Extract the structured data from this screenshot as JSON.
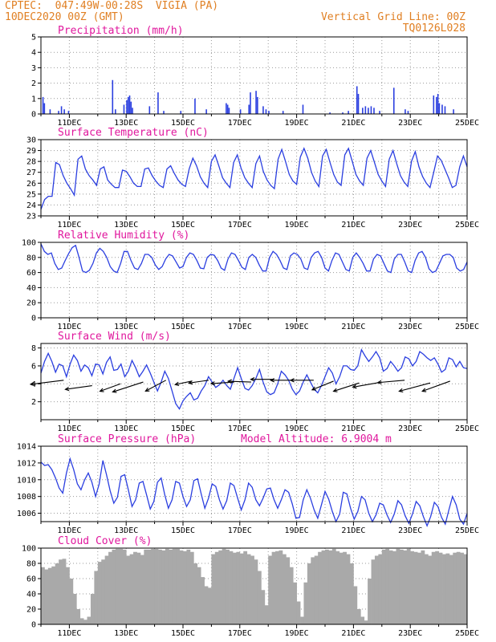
{
  "header": {
    "line1": "CPTEC:  047:49W-00:28S  VIGIA (PA)",
    "line2": "10DEC2020 00Z (GMT)",
    "right1": "Vertical Grid Line: 00Z",
    "right2": "TQ0126L028"
  },
  "colors": {
    "header": "#e07f22",
    "title": "#e0179d",
    "line": "#2b3fe0",
    "cloud": "#a9a9a9",
    "wind": "#000000"
  },
  "x_axis": {
    "start": "10DEC2020 00Z",
    "end": "25DEC2020 00Z",
    "day_ticks": [
      "11DEC",
      "12DEC",
      "13DEC",
      "14DEC",
      "15DEC",
      "16DEC",
      "17DEC",
      "18DEC",
      "19DEC",
      "20DEC",
      "21DEC",
      "22DEC",
      "23DEC",
      "24DEC",
      "25DEC"
    ],
    "labels": [
      "11DEC",
      "13DEC",
      "15DEC",
      "17DEC",
      "19DEC",
      "21DEC",
      "23DEC",
      "25DEC"
    ],
    "grid": "vertical dotted at 00Z"
  },
  "chart_data": [
    {
      "type": "bar",
      "title": "Precipitation (mm/h)",
      "ylim": [
        0,
        5
      ],
      "yticks": [
        "0",
        "1",
        "2",
        "3",
        "4",
        "5"
      ],
      "bars": [
        [
          0.05,
          1.1
        ],
        [
          0.1,
          0.7
        ],
        [
          0.3,
          0.3
        ],
        [
          0.6,
          0.2
        ],
        [
          0.7,
          0.5
        ],
        [
          0.8,
          0.3
        ],
        [
          0.95,
          0.2
        ],
        [
          2.5,
          2.2
        ],
        [
          2.6,
          0.3
        ],
        [
          2.9,
          0.6
        ],
        [
          3.0,
          0.9
        ],
        [
          3.05,
          1.1
        ],
        [
          3.1,
          1.2
        ],
        [
          3.15,
          0.8
        ],
        [
          3.2,
          0.4
        ],
        [
          3.8,
          0.5
        ],
        [
          4.1,
          1.4
        ],
        [
          4.3,
          0.2
        ],
        [
          4.9,
          0.2
        ],
        [
          5.4,
          1.0
        ],
        [
          5.8,
          0.3
        ],
        [
          6.5,
          0.7
        ],
        [
          6.55,
          0.6
        ],
        [
          6.6,
          0.4
        ],
        [
          7.0,
          0.3
        ],
        [
          7.3,
          0.6
        ],
        [
          7.35,
          1.4
        ],
        [
          7.55,
          1.5
        ],
        [
          7.6,
          1.1
        ],
        [
          7.8,
          0.5
        ],
        [
          7.9,
          0.3
        ],
        [
          8.0,
          0.2
        ],
        [
          8.5,
          0.2
        ],
        [
          9.2,
          0.6
        ],
        [
          10.15,
          0.1
        ],
        [
          10.6,
          0.1
        ],
        [
          10.8,
          0.2
        ],
        [
          11.1,
          1.8
        ],
        [
          11.15,
          1.3
        ],
        [
          11.3,
          0.4
        ],
        [
          11.4,
          0.5
        ],
        [
          11.5,
          0.4
        ],
        [
          11.6,
          0.5
        ],
        [
          11.7,
          0.4
        ],
        [
          11.9,
          0.2
        ],
        [
          12.4,
          1.7
        ],
        [
          12.8,
          0.3
        ],
        [
          12.9,
          0.2
        ],
        [
          13.8,
          1.2
        ],
        [
          13.9,
          1.1
        ],
        [
          13.95,
          1.3
        ],
        [
          14.0,
          0.7
        ],
        [
          14.1,
          0.6
        ],
        [
          14.2,
          0.5
        ],
        [
          14.5,
          0.3
        ]
      ]
    },
    {
      "type": "line",
      "title": "Surface Temperature (nC)",
      "ylim": [
        23,
        30
      ],
      "yticks": [
        "23",
        "24",
        "25",
        "26",
        "27",
        "28",
        "29",
        "30"
      ],
      "y": [
        23.6,
        24.5,
        24.8,
        24.8,
        27.9,
        27.7,
        26.7,
        26.0,
        25.5,
        24.9,
        28.2,
        28.5,
        27.3,
        26.7,
        26.3,
        25.8,
        27.3,
        27.5,
        26.3,
        25.9,
        25.6,
        25.6,
        27.2,
        27.1,
        26.6,
        26.0,
        25.7,
        25.7,
        27.3,
        27.4,
        26.7,
        26.2,
        25.8,
        25.6,
        27.3,
        27.6,
        26.9,
        26.3,
        25.9,
        25.7,
        27.3,
        28.3,
        27.6,
        26.6,
        26.0,
        25.6,
        28.0,
        28.6,
        27.6,
        26.5,
        26.0,
        25.6,
        27.9,
        28.6,
        27.4,
        26.5,
        26.0,
        25.6,
        27.8,
        28.5,
        27.1,
        26.3,
        25.8,
        25.5,
        28.2,
        29.1,
        28.0,
        26.8,
        26.2,
        25.9,
        28.4,
        29.2,
        28.3,
        27.0,
        26.2,
        25.7,
        28.5,
        29.1,
        27.9,
        26.8,
        26.1,
        25.8,
        28.6,
        29.2,
        28.0,
        26.8,
        26.2,
        25.8,
        28.3,
        29.0,
        27.9,
        26.8,
        26.2,
        25.7,
        28.2,
        29.0,
        27.8,
        26.7,
        26.1,
        25.7,
        28.0,
        28.9,
        27.5,
        26.6,
        26.0,
        25.6,
        27.0,
        28.5,
        28.1,
        27.3,
        26.5,
        25.6,
        25.8,
        27.5,
        28.5,
        27.5
      ]
    },
    {
      "type": "line",
      "title": "Relative Humidity (%)",
      "ylim": [
        0,
        100
      ],
      "yticks": [
        "0",
        "20",
        "40",
        "60",
        "80",
        "100"
      ],
      "y": [
        98,
        88,
        84,
        86,
        72,
        64,
        66,
        76,
        85,
        93,
        96,
        80,
        62,
        60,
        63,
        72,
        86,
        92,
        88,
        80,
        68,
        62,
        60,
        72,
        88,
        88,
        76,
        66,
        64,
        72,
        84,
        84,
        80,
        70,
        64,
        68,
        78,
        84,
        82,
        74,
        66,
        68,
        80,
        86,
        84,
        76,
        66,
        65,
        80,
        84,
        83,
        76,
        66,
        63,
        78,
        86,
        84,
        76,
        67,
        64,
        80,
        84,
        80,
        70,
        62,
        62,
        80,
        88,
        84,
        76,
        66,
        64,
        82,
        86,
        84,
        78,
        66,
        64,
        80,
        86,
        88,
        80,
        66,
        62,
        76,
        86,
        84,
        74,
        64,
        62,
        80,
        86,
        80,
        72,
        62,
        62,
        78,
        84,
        82,
        72,
        62,
        60,
        78,
        84,
        84,
        74,
        62,
        60,
        76,
        86,
        88,
        80,
        65,
        60,
        62,
        72,
        82,
        84,
        84,
        80,
        66,
        62,
        64,
        74
      ]
    },
    {
      "type": "line",
      "title": "Surface Wind (m/s)",
      "ylim": [
        0,
        8.5
      ],
      "yticks": [
        "2",
        "4",
        "6",
        "8"
      ],
      "y": [
        5.2,
        6.5,
        7.4,
        6.5,
        5.3,
        6.2,
        6.0,
        4.8,
        6.2,
        7.2,
        6.6,
        5.4,
        6.1,
        5.8,
        4.9,
        6.2,
        6.1,
        5.1,
        6.4,
        7.0,
        5.5,
        5.6,
        6.2,
        4.8,
        5.4,
        6.6,
        5.8,
        4.8,
        5.4,
        6.1,
        5.2,
        4.2,
        3.2,
        4.2,
        5.4,
        4.6,
        3.2,
        1.8,
        1.2,
        2.1,
        2.6,
        3.0,
        2.2,
        2.4,
        3.2,
        3.8,
        4.8,
        4.2,
        3.6,
        3.9,
        4.4,
        3.8,
        3.4,
        4.6,
        5.8,
        4.6,
        3.5,
        3.3,
        3.8,
        4.6,
        5.6,
        4.2,
        3.1,
        2.8,
        3.0,
        4.0,
        5.4,
        5.0,
        4.4,
        3.4,
        2.8,
        3.2,
        4.2,
        5.0,
        4.2,
        3.4,
        3.0,
        3.8,
        4.8,
        5.8,
        5.2,
        4.0,
        4.8,
        6.0,
        6.0,
        5.6,
        5.5,
        6.0,
        7.8,
        7.1,
        6.5,
        7.0,
        7.6,
        6.9,
        5.4,
        5.7,
        6.5,
        6.0,
        5.4,
        5.8,
        7.0,
        6.8,
        6.0,
        6.5,
        7.6,
        7.3,
        6.9,
        6.6,
        6.9,
        6.2,
        5.3,
        5.6,
        6.9,
        6.7,
        5.9,
        6.5,
        5.8,
        5.7
      ],
      "barbs": [
        [
          0.8,
          4.4,
          5.2,
          7
        ],
        [
          1.8,
          3.8,
          4.2,
          8
        ],
        [
          2.8,
          4.0,
          3.4,
          20
        ],
        [
          3.6,
          4.2,
          5.0,
          18
        ],
        [
          4.4,
          4.4,
          3.6,
          28
        ],
        [
          5.3,
          4.3,
          2.6,
          12
        ],
        [
          5.9,
          4.4,
          3.1,
          8
        ],
        [
          6.8,
          4.2,
          3.6,
          4
        ],
        [
          7.4,
          4.2,
          3.6,
          -2
        ],
        [
          8.2,
          4.5,
          3.6,
          0
        ],
        [
          8.9,
          4.4,
          3.6,
          0
        ],
        [
          9.6,
          4.4,
          3.6,
          0
        ],
        [
          10.3,
          4.3,
          3.6,
          22
        ],
        [
          11.2,
          4.1,
          4.2,
          18
        ],
        [
          12.0,
          4.2,
          4.6,
          10
        ],
        [
          12.8,
          4.4,
          4.2,
          5
        ],
        [
          13.7,
          4.1,
          5.0,
          15
        ],
        [
          14.4,
          4.3,
          4.6,
          20
        ]
      ]
    },
    {
      "type": "line",
      "title": "Surface Pressure (hPa)",
      "annotation": "Model Altitude: 6.9004 m",
      "ylim": [
        1005,
        1014
      ],
      "yticks": [
        "1006",
        "1008",
        "1010",
        "1012",
        "1014"
      ],
      "y": [
        1012.1,
        1011.7,
        1011.8,
        1011.2,
        1010.2,
        1009.0,
        1008.4,
        1010.8,
        1012.5,
        1011.2,
        1009.5,
        1008.8,
        1010.0,
        1010.8,
        1009.7,
        1008.0,
        1009.5,
        1012.3,
        1010.6,
        1008.7,
        1007.2,
        1007.9,
        1010.4,
        1010.6,
        1008.8,
        1006.8,
        1007.6,
        1009.6,
        1009.8,
        1008.2,
        1006.5,
        1007.4,
        1009.7,
        1010.2,
        1008.2,
        1006.6,
        1007.6,
        1009.8,
        1009.6,
        1008.0,
        1006.8,
        1007.6,
        1009.9,
        1010.1,
        1008.3,
        1006.6,
        1007.8,
        1009.5,
        1009.2,
        1007.6,
        1006.5,
        1007.5,
        1009.6,
        1009.3,
        1007.8,
        1006.4,
        1007.6,
        1009.6,
        1009.1,
        1007.6,
        1006.9,
        1007.8,
        1008.9,
        1009.0,
        1007.6,
        1006.6,
        1007.6,
        1008.8,
        1008.5,
        1007.1,
        1005.4,
        1005.5,
        1007.6,
        1008.8,
        1007.8,
        1006.4,
        1005.4,
        1007.0,
        1008.6,
        1007.7,
        1006.2,
        1005.0,
        1005.9,
        1008.5,
        1008.3,
        1006.6,
        1005.3,
        1006.2,
        1008.0,
        1007.6,
        1006.0,
        1005.0,
        1005.8,
        1007.2,
        1007.0,
        1005.8,
        1004.9,
        1005.9,
        1007.5,
        1007.0,
        1005.7,
        1004.8,
        1005.9,
        1007.4,
        1006.9,
        1005.6,
        1004.5,
        1005.6,
        1007.3,
        1006.8,
        1005.5,
        1004.7,
        1006.4,
        1008.0,
        1007.0,
        1005.3,
        1004.7,
        1006.0
      ]
    },
    {
      "type": "area",
      "title": "Cloud Cover (%)",
      "ylim": [
        0,
        100
      ],
      "yticks": [
        "0",
        "20",
        "40",
        "60",
        "80",
        "100"
      ],
      "y": [
        75,
        72,
        74,
        76,
        80,
        85,
        86,
        75,
        60,
        40,
        20,
        8,
        6,
        10,
        40,
        70,
        82,
        85,
        90,
        95,
        98,
        99,
        99,
        98,
        90,
        92,
        95,
        94,
        91,
        98,
        98,
        99,
        99,
        98,
        97,
        99,
        98,
        99,
        99,
        97,
        96,
        98,
        95,
        80,
        75,
        62,
        50,
        48,
        92,
        95,
        97,
        99,
        98,
        96,
        94,
        95,
        93,
        96,
        92,
        90,
        85,
        70,
        45,
        25,
        90,
        95,
        96,
        97,
        92,
        88,
        75,
        55,
        30,
        10,
        55,
        80,
        88,
        90,
        95,
        97,
        98,
        97,
        99,
        96,
        94,
        95,
        92,
        80,
        50,
        20,
        10,
        5,
        60,
        85,
        90,
        92,
        98,
        99,
        97,
        96,
        99,
        98,
        97,
        99,
        96,
        95,
        94,
        97,
        92,
        90,
        95,
        96,
        94,
        92,
        93,
        91,
        94,
        95,
        94,
        92
      ]
    }
  ]
}
